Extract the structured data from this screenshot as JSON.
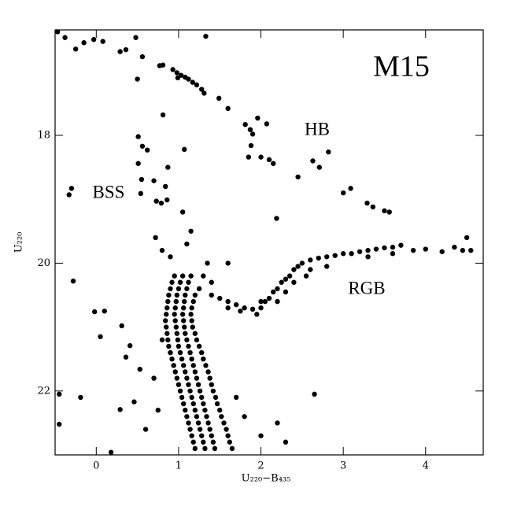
{
  "chart_data": {
    "type": "scatter",
    "xlabel": "U₂₂₀−B₄₃₅",
    "ylabel": "U₂₂₀",
    "annotations": [
      "M15",
      "HB",
      "BSS",
      "RGB"
    ],
    "color": "#000000",
    "xlim": [
      -0.5,
      4.7
    ],
    "ylim": [
      23,
      16.35
    ],
    "xticks": [
      0,
      1,
      2,
      3,
      4
    ],
    "yticks": [
      18,
      20,
      22
    ],
    "x": [
      -0.47,
      -0.38,
      -0.25,
      -0.15,
      -0.03,
      0.08,
      0.29,
      0.36,
      0.56,
      0.48,
      0.77,
      0.81,
      0.93,
      0.98,
      1.03,
      1.08,
      1.12,
      1.17,
      1.22,
      1.28,
      1.31,
      0.99,
      0.5,
      1.33,
      1.49,
      1.6,
      0.81,
      1.81,
      1.87,
      1.9,
      2.07,
      1.96,
      1.88,
      1.85,
      2.0,
      2.1,
      2.15,
      2.45,
      2.63,
      2.82,
      2.71,
      3.0,
      3.09,
      3.29,
      3.36,
      3.5,
      3.56,
      2.19,
      1.07,
      0.51,
      0.56,
      0.62,
      0.51,
      0.87,
      0.7,
      0.84,
      -0.3,
      -0.33,
      0.54,
      0.73,
      0.79,
      0.86,
      0.55,
      -0.28,
      -0.02,
      0.1,
      0.05,
      0.31,
      -0.19,
      -0.45,
      -0.45,
      0.18,
      0.29,
      0.46,
      0.53,
      0.41,
      0.36,
      1.7,
      1.8,
      2.0,
      2.2,
      2.3,
      0.7,
      0.75,
      0.6,
      2.65,
      0.8,
      0.72,
      0.8,
      0.9,
      1.1,
      1.15,
      1.35,
      1.6,
      1.05,
      0.95,
      1.05,
      1.15,
      1.3,
      0.92,
      1.02,
      1.12,
      1.4,
      0.9,
      1.0,
      1.1,
      1.25,
      0.88,
      0.98,
      1.08,
      1.2,
      0.87,
      0.97,
      1.07,
      1.18,
      0.86,
      0.96,
      1.06,
      1.16,
      0.85,
      0.95,
      1.05,
      1.15,
      0.84,
      0.96,
      1.06,
      1.16,
      0.85,
      0.97,
      1.07,
      1.17,
      0.86,
      0.98,
      1.08,
      1.2,
      0.87,
      0.99,
      1.1,
      1.22,
      0.88,
      1.0,
      1.12,
      1.25,
      0.9,
      1.02,
      1.14,
      1.28,
      0.92,
      1.04,
      1.16,
      1.3,
      0.94,
      1.06,
      1.18,
      1.33,
      0.96,
      1.08,
      1.2,
      1.36,
      0.98,
      1.1,
      1.22,
      1.38,
      1.0,
      1.12,
      1.24,
      1.4,
      1.02,
      1.14,
      1.26,
      1.42,
      1.04,
      1.16,
      1.28,
      1.45,
      1.06,
      1.18,
      1.3,
      1.47,
      1.08,
      1.2,
      1.32,
      1.5,
      1.1,
      1.22,
      1.34,
      1.52,
      1.12,
      1.24,
      1.36,
      1.55,
      1.14,
      1.26,
      1.38,
      1.58,
      1.16,
      1.28,
      1.4,
      1.6,
      1.18,
      1.3,
      1.42,
      1.62,
      1.2,
      1.32,
      1.44,
      1.65,
      1.4,
      1.5,
      1.6,
      1.7,
      1.8,
      1.9,
      2.0,
      1.75,
      1.95,
      2.05,
      2.1,
      2.15,
      2.2,
      2.25,
      2.3,
      2.35,
      2.4,
      2.45,
      2.5,
      2.6,
      2.7,
      2.8,
      2.9,
      3.0,
      3.1,
      3.2,
      3.3,
      3.4,
      3.5,
      3.6,
      3.7,
      3.85,
      4.0,
      4.2,
      4.35,
      4.5,
      4.55,
      4.45,
      2.2,
      2.4,
      2.3,
      2.0,
      1.6,
      2.6,
      2.8,
      3.3,
      3.6,
      2.55
    ],
    "values": [
      16.38,
      16.47,
      16.65,
      16.55,
      16.5,
      16.53,
      16.69,
      16.66,
      16.77,
      16.47,
      16.91,
      16.9,
      16.97,
      17.02,
      17.06,
      17.09,
      17.12,
      17.17,
      17.21,
      17.28,
      17.34,
      17.1,
      17.12,
      16.45,
      17.42,
      17.58,
      17.68,
      17.83,
      17.91,
      17.98,
      17.82,
      17.73,
      18.16,
      18.34,
      18.34,
      18.38,
      18.44,
      18.65,
      18.4,
      18.26,
      18.5,
      18.9,
      18.83,
      19.06,
      19.12,
      19.18,
      19.2,
      19.3,
      18.22,
      18.02,
      18.17,
      18.23,
      18.44,
      18.5,
      18.71,
      18.8,
      18.83,
      18.93,
      18.91,
      19.03,
      19.06,
      19.01,
      18.69,
      20.28,
      20.76,
      20.75,
      21.15,
      20.98,
      22.1,
      22.05,
      22.52,
      22.96,
      22.29,
      22.17,
      21.66,
      21.29,
      21.47,
      22.1,
      22.4,
      22.7,
      22.5,
      22.8,
      21.8,
      22.3,
      22.6,
      22.05,
      21.2,
      19.6,
      19.8,
      19.9,
      19.7,
      19.5,
      20.0,
      20.0,
      19.2,
      20.2,
      20.2,
      20.2,
      20.2,
      20.3,
      20.3,
      20.3,
      20.3,
      20.4,
      20.4,
      20.4,
      20.4,
      20.5,
      20.5,
      20.5,
      20.5,
      20.6,
      20.6,
      20.6,
      20.6,
      20.7,
      20.7,
      20.7,
      20.7,
      20.8,
      20.8,
      20.8,
      20.8,
      20.9,
      20.9,
      20.9,
      20.9,
      21.0,
      21.0,
      21.0,
      21.0,
      21.1,
      21.1,
      21.1,
      21.1,
      21.2,
      21.2,
      21.2,
      21.2,
      21.3,
      21.3,
      21.3,
      21.3,
      21.4,
      21.4,
      21.4,
      21.4,
      21.5,
      21.5,
      21.5,
      21.5,
      21.6,
      21.6,
      21.6,
      21.6,
      21.7,
      21.7,
      21.7,
      21.7,
      21.8,
      21.8,
      21.8,
      21.8,
      21.9,
      21.9,
      21.9,
      21.9,
      22.0,
      22.0,
      22.0,
      22.0,
      22.1,
      22.1,
      22.1,
      22.1,
      22.2,
      22.2,
      22.2,
      22.2,
      22.3,
      22.3,
      22.3,
      22.3,
      22.4,
      22.4,
      22.4,
      22.4,
      22.5,
      22.5,
      22.5,
      22.5,
      22.6,
      22.6,
      22.6,
      22.6,
      22.7,
      22.7,
      22.7,
      22.7,
      22.8,
      22.8,
      22.8,
      22.8,
      22.9,
      22.9,
      22.9,
      22.9,
      20.5,
      20.55,
      20.6,
      20.65,
      20.7,
      20.72,
      20.7,
      20.75,
      20.8,
      20.6,
      20.55,
      20.45,
      20.4,
      20.3,
      20.25,
      20.2,
      20.1,
      20.05,
      20.0,
      19.95,
      19.92,
      19.9,
      19.88,
      19.85,
      19.85,
      19.82,
      19.8,
      19.78,
      19.76,
      19.75,
      19.72,
      19.8,
      19.78,
      19.82,
      19.75,
      19.6,
      19.8,
      19.8,
      20.6,
      20.3,
      20.45,
      20.6,
      20.7,
      20.1,
      20.05,
      19.9,
      19.85,
      20.2
    ]
  }
}
